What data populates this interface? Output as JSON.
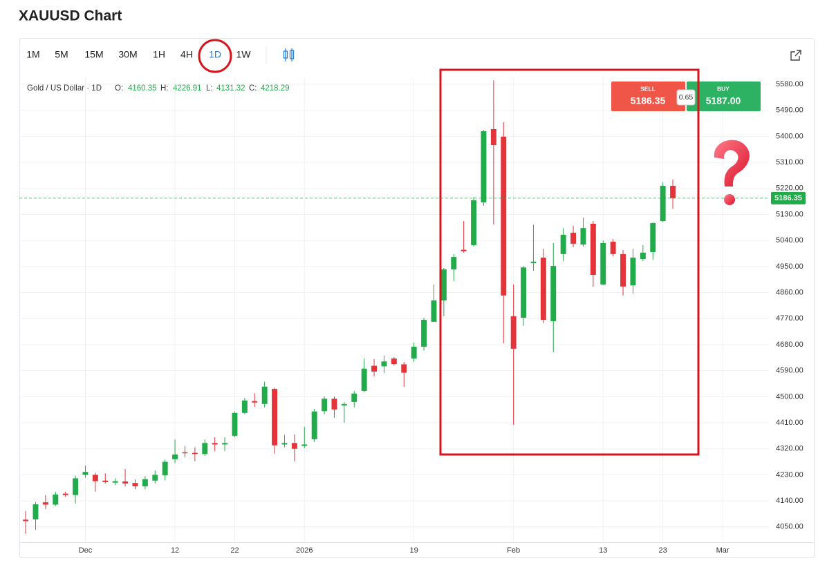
{
  "title": "XAUUSD Chart",
  "toolbar": {
    "timeframes": [
      "1M",
      "5M",
      "15M",
      "30M",
      "1H",
      "4H",
      "1D",
      "1W"
    ],
    "active": "1D"
  },
  "legend": {
    "symbol": "Gold / US Dollar · 1D",
    "o_label": "O:",
    "o": "4160.35",
    "h_label": "H:",
    "h": "4226.91",
    "l_label": "L:",
    "l": "4131.32",
    "c_label": "C:",
    "c": "4218.29"
  },
  "trade": {
    "sell_label": "SELL",
    "sell": "5186.35",
    "spread": "0.65",
    "buy_label": "BUY",
    "buy": "5187.00"
  },
  "chart_data": {
    "type": "candlestick",
    "open": [
      4075,
      4076,
      4135,
      4127,
      4165,
      4160,
      4230,
      4230,
      4210,
      4203,
      4207,
      4202,
      4190,
      4210,
      4228,
      4284,
      4308,
      4306,
      4302,
      4340,
      4335,
      4365,
      4444,
      4485,
      4475,
      4527,
      4335,
      4340,
      4330,
      4353,
      4450,
      4493,
      4470,
      4482,
      4520,
      4607,
      4605,
      4632,
      4612,
      4632,
      4673,
      4759,
      4833,
      4940,
      5008,
      5024,
      5172,
      5425,
      5399,
      4778,
      4773,
      4962,
      4981,
      4761,
      4993,
      5067,
      5026,
      5098,
      4888,
      5036,
      4993,
      4885,
      4976,
      5000,
      5107,
      5229
    ],
    "high": [
      4105,
      4136,
      4160,
      4172,
      4172,
      4227,
      4262,
      4237,
      4235,
      4218,
      4250,
      4214,
      4226,
      4245,
      4283,
      4352,
      4330,
      4325,
      4352,
      4360,
      4360,
      4449,
      4496,
      4512,
      4552,
      4532,
      4368,
      4370,
      4396,
      4458,
      4501,
      4501,
      4482,
      4520,
      4632,
      4630,
      4642,
      4637,
      4620,
      4687,
      4773,
      4888,
      4945,
      4993,
      5107,
      5191,
      5422,
      5594,
      5449,
      4888,
      4952,
      5095,
      5012,
      5031,
      5083,
      5091,
      5119,
      5107,
      5040,
      5045,
      5007,
      5012,
      5024,
      5103,
      5241,
      5251
    ],
    "low": [
      4026,
      4040,
      4112,
      4122,
      4155,
      4131,
      4220,
      4172,
      4200,
      4195,
      4190,
      4180,
      4180,
      4200,
      4211,
      4270,
      4290,
      4277,
      4295,
      4312,
      4312,
      4360,
      4439,
      4465,
      4463,
      4303,
      4325,
      4277,
      4322,
      4343,
      4439,
      4427,
      4410,
      4463,
      4515,
      4570,
      4582,
      4608,
      4534,
      4620,
      4659,
      4759,
      4778,
      4900,
      4998,
      5019,
      5160,
      5095,
      4685,
      4403,
      4745,
      4935,
      4754,
      4654,
      4969,
      5017,
      5019,
      4880,
      4885,
      4986,
      4850,
      4857,
      4969,
      4974,
      5105,
      5150
    ],
    "close": [
      4070,
      4128,
      4127,
      4162,
      4160,
      4218,
      4240,
      4208,
      4205,
      4208,
      4200,
      4190,
      4215,
      4230,
      4275,
      4300,
      4305,
      4302,
      4340,
      4335,
      4340,
      4444,
      4487,
      4480,
      4535,
      4332,
      4340,
      4320,
      4335,
      4449,
      4493,
      4456,
      4475,
      4511,
      4597,
      4587,
      4622,
      4613,
      4583,
      4673,
      4766,
      4833,
      4940,
      4983,
      5003,
      5179,
      5418,
      5370,
      4850,
      4666,
      4947,
      4967,
      4766,
      4952,
      5060,
      5029,
      5083,
      4921,
      5031,
      4993,
      4881,
      4981,
      4998,
      5100,
      5229,
      5186.35
    ],
    "xlim": [
      -0.63,
      74.65
    ],
    "xticks": [
      {
        "value": 6,
        "label": "Dec"
      },
      {
        "value": 15,
        "label": "12"
      },
      {
        "value": 21,
        "label": "22"
      },
      {
        "value": 28,
        "label": "2026"
      },
      {
        "value": 39,
        "label": "19"
      },
      {
        "value": 49,
        "label": "Feb"
      },
      {
        "value": 58,
        "label": "13"
      },
      {
        "value": 64,
        "label": "23"
      },
      {
        "value": 70,
        "label": "Mar"
      }
    ],
    "ylim": [
      3997,
      5604
    ],
    "yticks": [
      {
        "value": 4050,
        "label": "4050.00"
      },
      {
        "value": 4140,
        "label": "4140.00"
      },
      {
        "value": 4230,
        "label": "4230.00"
      },
      {
        "value": 4320,
        "label": "4320.00"
      },
      {
        "value": 4410,
        "label": "4410.00"
      },
      {
        "value": 4500,
        "label": "4500.00"
      },
      {
        "value": 4590,
        "label": "4590.00"
      },
      {
        "value": 4680,
        "label": "4680.00"
      },
      {
        "value": 4770,
        "label": "4770.00"
      },
      {
        "value": 4860,
        "label": "4860.00"
      },
      {
        "value": 4950,
        "label": "4950.00"
      },
      {
        "value": 5040,
        "label": "5040.00"
      },
      {
        "value": 5130,
        "label": "5130.00"
      },
      {
        "value": 5220,
        "label": "5220.00"
      },
      {
        "value": 5310,
        "label": "5310.00"
      },
      {
        "value": 5400,
        "label": "5400.00"
      },
      {
        "value": 5490,
        "label": "5490.00"
      },
      {
        "value": 5580,
        "label": "5580.00"
      }
    ],
    "last_price": 5186.35,
    "up_color": "#22ab4a",
    "down_color": "#e5333a",
    "grid": true
  }
}
